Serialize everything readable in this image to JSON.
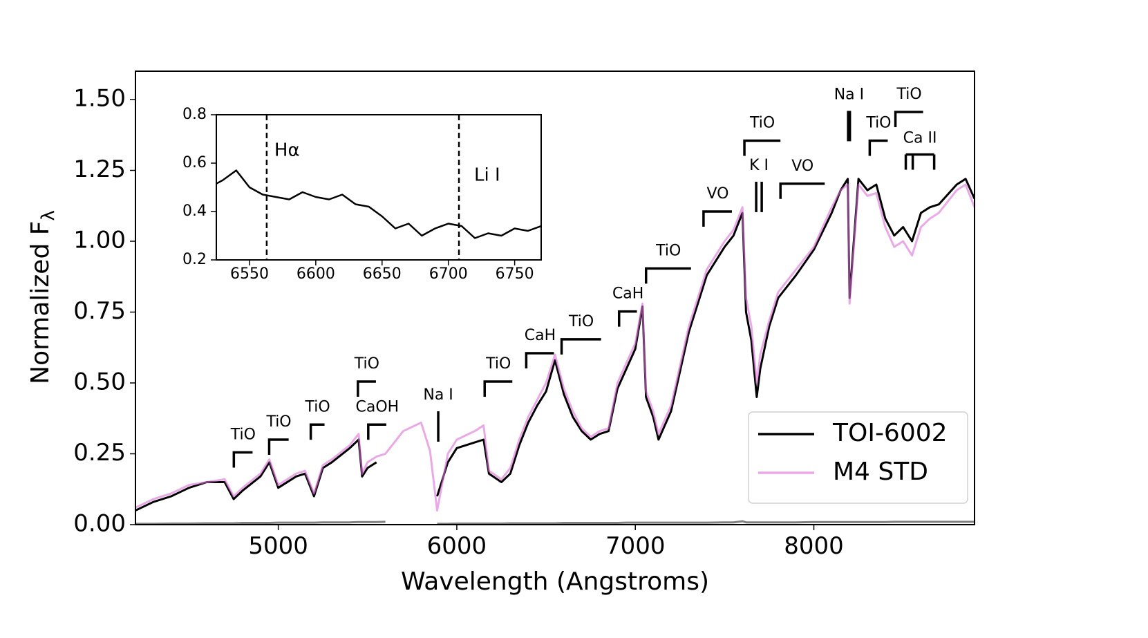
{
  "chart_data": {
    "type": "line",
    "xlabel": "Wavelength (Angstroms)",
    "ylabel": "Normalized F",
    "ylabel_subscript": "λ",
    "xlim": [
      4200,
      8900
    ],
    "ylim": [
      0,
      1.6
    ],
    "xticks": [
      5000,
      6000,
      7000,
      8000
    ],
    "yticks": [
      {
        "value": 0,
        "label": "0.00"
      },
      {
        "value": 0.25,
        "label": "0.25"
      },
      {
        "value": 0.5,
        "label": "0.50"
      },
      {
        "value": 0.75,
        "label": "0.75"
      },
      {
        "value": 1.0,
        "label": "1.00"
      },
      {
        "value": 1.25,
        "label": "1.25"
      },
      {
        "value": 1.5,
        "label": "1.50"
      }
    ],
    "legend": "lower right",
    "x": [
      4200,
      4300,
      4400,
      4500,
      4600,
      4700,
      4750,
      4800,
      4900,
      4950,
      5000,
      5100,
      5150,
      5200,
      5250,
      5300,
      5400,
      5450,
      5470,
      5500,
      5550,
      5600,
      5700,
      5800,
      5850,
      5890,
      5950,
      6000,
      6100,
      6150,
      6180,
      6250,
      6300,
      6350,
      6400,
      6450,
      6500,
      6550,
      6600,
      6650,
      6700,
      6750,
      6800,
      6850,
      6900,
      6950,
      7000,
      7040,
      7060,
      7100,
      7130,
      7200,
      7300,
      7400,
      7500,
      7550,
      7600,
      7620,
      7650,
      7680,
      7700,
      7750,
      7800,
      7900,
      8000,
      8100,
      8150,
      8190,
      8200,
      8250,
      8300,
      8350,
      8400,
      8450,
      8500,
      8550,
      8600,
      8650,
      8700,
      8800,
      8850,
      8900
    ],
    "series": [
      {
        "name": "TOI-6002",
        "color": "#000000",
        "alpha": 1,
        "values": [
          0.05,
          0.08,
          0.1,
          0.13,
          0.15,
          0.15,
          0.09,
          0.12,
          0.17,
          0.22,
          0.13,
          0.17,
          0.18,
          0.1,
          0.2,
          0.22,
          0.27,
          0.3,
          0.17,
          0.2,
          0.22,
          null,
          null,
          null,
          null,
          0.1,
          0.22,
          0.27,
          0.29,
          0.3,
          0.18,
          0.15,
          0.18,
          0.28,
          0.36,
          0.42,
          0.47,
          0.58,
          0.46,
          0.38,
          0.33,
          0.3,
          0.32,
          0.33,
          0.48,
          0.55,
          0.62,
          0.77,
          0.45,
          0.38,
          0.3,
          0.4,
          0.68,
          0.88,
          0.98,
          1.02,
          1.1,
          0.75,
          0.65,
          0.45,
          0.55,
          0.7,
          0.8,
          0.88,
          0.97,
          1.1,
          1.18,
          1.22,
          0.8,
          1.22,
          1.18,
          1.2,
          1.08,
          1.02,
          1.05,
          1.0,
          1.1,
          1.12,
          1.13,
          1.2,
          1.22,
          1.15
        ]
      },
      {
        "name": "M4 STD",
        "color": "#da70d6",
        "alpha": 0.6,
        "values": [
          0.06,
          0.09,
          0.11,
          0.14,
          0.15,
          0.16,
          0.1,
          0.13,
          0.18,
          0.23,
          0.14,
          0.18,
          0.19,
          0.11,
          0.21,
          0.23,
          0.28,
          0.32,
          0.18,
          0.22,
          0.24,
          0.25,
          0.33,
          0.36,
          0.26,
          0.05,
          0.25,
          0.3,
          0.33,
          0.35,
          0.19,
          0.16,
          0.2,
          0.3,
          0.38,
          0.44,
          0.5,
          0.6,
          0.48,
          0.4,
          0.34,
          0.31,
          0.33,
          0.34,
          0.5,
          0.57,
          0.64,
          0.78,
          0.47,
          0.4,
          0.32,
          0.42,
          0.7,
          0.9,
          1.0,
          1.04,
          1.12,
          0.8,
          0.7,
          0.5,
          0.6,
          0.72,
          0.82,
          0.9,
          0.98,
          1.12,
          1.18,
          1.2,
          0.78,
          1.2,
          1.16,
          1.17,
          1.05,
          0.98,
          1.0,
          0.95,
          1.05,
          1.08,
          1.1,
          1.18,
          1.2,
          1.12
        ]
      },
      {
        "color": "#808080",
        "alpha": 1,
        "values": [
          0.003,
          0.003,
          0.004,
          0.004,
          0.005,
          0.005,
          0.005,
          0.006,
          0.006,
          0.006,
          0.007,
          0.007,
          0.007,
          0.007,
          0.008,
          0.008,
          0.008,
          0.009,
          0.009,
          0.009,
          0.009,
          0.01,
          null,
          null,
          null,
          0.003,
          0.003,
          0.004,
          0.004,
          0.004,
          0.004,
          0.004,
          0.005,
          0.005,
          0.005,
          0.005,
          0.005,
          0.005,
          0.006,
          0.006,
          0.006,
          0.006,
          0.006,
          0.006,
          0.006,
          0.007,
          0.007,
          0.007,
          0.007,
          0.007,
          0.007,
          0.007,
          0.007,
          0.007,
          0.008,
          0.008,
          0.012,
          0.008,
          0.008,
          0.008,
          0.008,
          0.008,
          0.008,
          0.008,
          0.009,
          0.009,
          0.009,
          0.009,
          0.009,
          0.009,
          0.009,
          0.009,
          0.009,
          0.01,
          0.01,
          0.01,
          0.01,
          0.01,
          0.01,
          0.01,
          0.01,
          0.01
        ]
      }
    ],
    "annotations": [
      {
        "text": "TiO",
        "x": [
          4751,
          4856
        ],
        "y": 0.255
      },
      {
        "text": "TiO",
        "x": [
          4949,
          5058
        ],
        "y": 0.3
      },
      {
        "text": "TiO",
        "x": [
          5182,
          5259
        ],
        "y": 0.353
      },
      {
        "text": "TiO",
        "x": [
          5446,
          5547
        ],
        "y": 0.505
      },
      {
        "text": "CaOH",
        "x": [
          5504,
          5605
        ],
        "y": 0.353
      },
      {
        "text": "Na I",
        "lines": [
          5896
        ],
        "y": 0.4
      },
      {
        "text": "TiO",
        "x": [
          6156,
          6311
        ],
        "y": 0.505
      },
      {
        "text": "CaH",
        "x": [
          6389,
          6544
        ],
        "y": 0.605
      },
      {
        "text": "TiO",
        "x": [
          6587,
          6808
        ],
        "y": 0.654
      },
      {
        "text": "CaH",
        "x": [
          6909,
          7009
        ],
        "y": 0.752
      },
      {
        "text": "TiO",
        "x": [
          7060,
          7312
        ],
        "y": 0.904
      },
      {
        "text": "VO",
        "x": [
          7382,
          7541
        ],
        "y": 1.105
      },
      {
        "text": "TiO",
        "x": [
          7611,
          7813
        ],
        "y": 1.355
      },
      {
        "text": "K I",
        "lines": [
          7677,
          7708
        ],
        "y": 1.21
      },
      {
        "text": "VO",
        "x": [
          7813,
          8061
        ],
        "y": 1.203
      },
      {
        "text": "Na I",
        "lines": [
          8197
        ],
        "y": 1.46
      },
      {
        "text": "TiO",
        "x": [
          8313,
          8414
        ],
        "y": 1.355
      },
      {
        "text": "TiO",
        "x": [
          8457,
          8612
        ],
        "y": 1.456
      },
      {
        "text": "Ca II",
        "lines": [
          8515,
          8554,
          8674
        ],
        "y": 1.306
      }
    ],
    "inset": {
      "color": "#000000",
      "xlim": [
        6525,
        6770
      ],
      "ylim": [
        0.2,
        0.8
      ],
      "xticks": [
        6550,
        6600,
        6650,
        6700,
        6750
      ],
      "yticks": [
        0.2,
        0.4,
        0.6,
        0.8
      ],
      "x": [
        6520,
        6530,
        6540,
        6550,
        6560,
        6570,
        6580,
        6590,
        6600,
        6610,
        6620,
        6630,
        6640,
        6650,
        6660,
        6670,
        6680,
        6690,
        6700,
        6710,
        6720,
        6730,
        6740,
        6750,
        6760,
        6770
      ],
      "values": [
        0.5,
        0.53,
        0.57,
        0.5,
        0.47,
        0.46,
        0.45,
        0.48,
        0.46,
        0.45,
        0.47,
        0.43,
        0.42,
        0.38,
        0.33,
        0.35,
        0.3,
        0.33,
        0.35,
        0.34,
        0.29,
        0.31,
        0.3,
        0.33,
        0.32,
        0.34
      ],
      "vlines": [
        {
          "x": 6563,
          "label": "Hα"
        },
        {
          "x": 6708,
          "label": "Li I"
        }
      ]
    }
  }
}
